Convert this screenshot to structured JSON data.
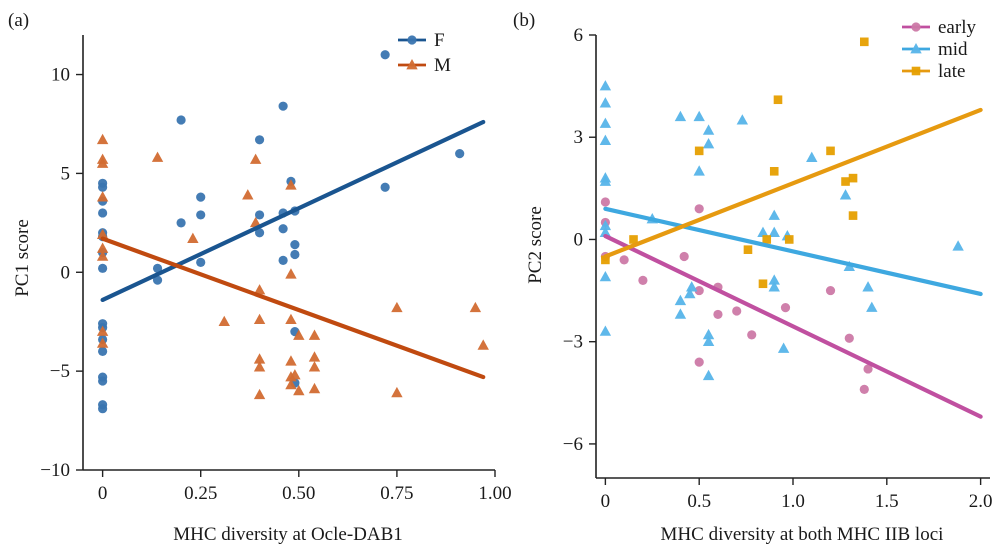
{
  "chart_data": [
    {
      "panel_label": "(a)",
      "type": "scatter",
      "xlabel": "MHC diversity at Ocle-DAB1",
      "ylabel": "PC1 score",
      "xlim": [
        -0.05,
        1.0
      ],
      "ylim": [
        -10,
        12
      ],
      "xticks": [
        0,
        0.25,
        0.5,
        0.75,
        1.0
      ],
      "xtick_labels": [
        "0",
        "0.25",
        "0.50",
        "0.75",
        "1.00"
      ],
      "yticks": [
        -10,
        -5,
        0,
        5,
        10
      ],
      "ytick_labels": [
        "−10",
        "−5",
        "0",
        "5",
        "10"
      ],
      "legend_position": "top-right",
      "series": [
        {
          "name": "F",
          "color": "#3a75b0",
          "fit_color": "#1a5590",
          "marker": "circle",
          "points": [
            [
              0,
              4.5
            ],
            [
              0,
              4.3
            ],
            [
              0,
              3.6
            ],
            [
              0,
              3.0
            ],
            [
              0,
              2.0
            ],
            [
              0,
              1.8
            ],
            [
              0,
              1.0
            ],
            [
              0,
              0.2
            ],
            [
              0,
              -2.6
            ],
            [
              0,
              -2.8
            ],
            [
              0,
              -3.4
            ],
            [
              0,
              -4.0
            ],
            [
              0,
              -5.3
            ],
            [
              0,
              -5.5
            ],
            [
              0,
              -6.7
            ],
            [
              0,
              -6.9
            ],
            [
              0.14,
              0.2
            ],
            [
              0.14,
              -0.4
            ],
            [
              0.2,
              7.7
            ],
            [
              0.2,
              2.5
            ],
            [
              0.25,
              3.8
            ],
            [
              0.25,
              2.9
            ],
            [
              0.25,
              0.5
            ],
            [
              0.4,
              6.7
            ],
            [
              0.4,
              2.9
            ],
            [
              0.4,
              2.0
            ],
            [
              0.46,
              8.4
            ],
            [
              0.46,
              3.0
            ],
            [
              0.46,
              2.2
            ],
            [
              0.46,
              0.6
            ],
            [
              0.48,
              4.6
            ],
            [
              0.49,
              3.1
            ],
            [
              0.49,
              1.4
            ],
            [
              0.49,
              0.9
            ],
            [
              0.49,
              -3.0
            ],
            [
              0.49,
              -5.6
            ],
            [
              0.72,
              11.0
            ],
            [
              0.72,
              4.3
            ],
            [
              0.91,
              6.0
            ]
          ],
          "fit": [
            [
              0,
              -1.4
            ],
            [
              0.97,
              7.6
            ]
          ]
        },
        {
          "name": "M",
          "color": "#d26b32",
          "fit_color": "#c04a10",
          "marker": "triangle",
          "points": [
            [
              0,
              6.7
            ],
            [
              0,
              5.7
            ],
            [
              0,
              5.5
            ],
            [
              0,
              3.8
            ],
            [
              0,
              1.9
            ],
            [
              0,
              1.2
            ],
            [
              0,
              0.8
            ],
            [
              0,
              -3.0
            ],
            [
              0,
              -3.6
            ],
            [
              0.14,
              5.8
            ],
            [
              0.23,
              1.7
            ],
            [
              0.31,
              -2.5
            ],
            [
              0.37,
              3.9
            ],
            [
              0.39,
              2.5
            ],
            [
              0.39,
              5.7
            ],
            [
              0.4,
              -0.9
            ],
            [
              0.4,
              -2.4
            ],
            [
              0.4,
              -4.4
            ],
            [
              0.4,
              -4.8
            ],
            [
              0.4,
              -6.2
            ],
            [
              0.48,
              4.4
            ],
            [
              0.48,
              -0.1
            ],
            [
              0.48,
              -2.4
            ],
            [
              0.48,
              -4.5
            ],
            [
              0.48,
              -5.3
            ],
            [
              0.48,
              -5.7
            ],
            [
              0.49,
              -5.2
            ],
            [
              0.5,
              -3.2
            ],
            [
              0.5,
              -6.0
            ],
            [
              0.54,
              -3.2
            ],
            [
              0.54,
              -4.3
            ],
            [
              0.54,
              -4.8
            ],
            [
              0.54,
              -5.9
            ],
            [
              0.75,
              -1.8
            ],
            [
              0.75,
              -6.1
            ],
            [
              0.95,
              -1.8
            ],
            [
              0.97,
              -3.7
            ]
          ],
          "fit": [
            [
              0,
              1.7
            ],
            [
              0.97,
              -5.3
            ]
          ]
        }
      ]
    },
    {
      "panel_label": "(b)",
      "type": "scatter",
      "xlabel": "MHC diversity at both MHC IIB loci",
      "ylabel": "PC2 score",
      "xlim": [
        -0.05,
        2.05
      ],
      "ylim": [
        -7,
        6
      ],
      "xticks": [
        0,
        0.5,
        1.0,
        1.5,
        2.0
      ],
      "xtick_labels": [
        "0",
        "0.5",
        "1.0",
        "1.5",
        "2.0"
      ],
      "yticks": [
        -6,
        -3,
        0,
        3,
        6
      ],
      "ytick_labels": [
        "−6",
        "−3",
        "0",
        "3",
        "6"
      ],
      "legend_position": "top-right",
      "series": [
        {
          "name": "early",
          "color": "#cc79a7",
          "fit_color": "#c050a0",
          "marker": "circle",
          "points": [
            [
              0,
              1.1
            ],
            [
              0,
              0.5
            ],
            [
              0,
              -0.5
            ],
            [
              0.1,
              -0.6
            ],
            [
              0.2,
              -1.2
            ],
            [
              0.42,
              -0.5
            ],
            [
              0.5,
              0.9
            ],
            [
              0.5,
              -1.5
            ],
            [
              0.5,
              -3.6
            ],
            [
              0.6,
              -1.4
            ],
            [
              0.6,
              -2.2
            ],
            [
              0.7,
              -2.1
            ],
            [
              0.78,
              -2.8
            ],
            [
              0.96,
              -2.0
            ],
            [
              1.2,
              -1.5
            ],
            [
              1.3,
              -2.9
            ],
            [
              1.38,
              -4.4
            ],
            [
              1.4,
              -3.8
            ]
          ],
          "fit": [
            [
              0,
              0.1
            ],
            [
              2.0,
              -5.2
            ]
          ]
        },
        {
          "name": "mid",
          "color": "#56b4e9",
          "fit_color": "#3ea8e0",
          "marker": "triangle",
          "points": [
            [
              0,
              4.5
            ],
            [
              0,
              4.0
            ],
            [
              0,
              3.4
            ],
            [
              0,
              2.9
            ],
            [
              0,
              1.8
            ],
            [
              0,
              1.7
            ],
            [
              0,
              0.4
            ],
            [
              0,
              0.2
            ],
            [
              0,
              -1.1
            ],
            [
              0,
              -2.7
            ],
            [
              0.25,
              0.6
            ],
            [
              0.4,
              3.6
            ],
            [
              0.4,
              -1.8
            ],
            [
              0.46,
              -1.4
            ],
            [
              0.5,
              3.6
            ],
            [
              0.5,
              2.0
            ],
            [
              0.55,
              3.2
            ],
            [
              0.55,
              2.8
            ],
            [
              0.55,
              -2.8
            ],
            [
              0.55,
              -3.0
            ],
            [
              0.55,
              -4.0
            ],
            [
              0.73,
              3.5
            ],
            [
              0.9,
              0.7
            ],
            [
              0.9,
              0.2
            ],
            [
              0.9,
              -1.2
            ],
            [
              0.9,
              -1.4
            ],
            [
              0.95,
              -3.2
            ],
            [
              0.97,
              0.1
            ],
            [
              1.1,
              2.4
            ],
            [
              1.28,
              1.3
            ],
            [
              1.3,
              -0.8
            ],
            [
              1.4,
              -1.4
            ],
            [
              1.42,
              -2.0
            ],
            [
              1.88,
              -0.2
            ],
            [
              0.84,
              0.2
            ],
            [
              0.45,
              -1.6
            ],
            [
              0.4,
              -2.2
            ]
          ],
          "fit": [
            [
              0,
              0.9
            ],
            [
              2.0,
              -1.6
            ]
          ]
        },
        {
          "name": "late",
          "color": "#e69f00",
          "fit_color": "#e69a10",
          "marker": "square",
          "points": [
            [
              0,
              -0.6
            ],
            [
              0.15,
              0
            ],
            [
              0.5,
              2.6
            ],
            [
              0.76,
              -0.3
            ],
            [
              0.84,
              -1.3
            ],
            [
              0.86,
              0
            ],
            [
              0.9,
              2.0
            ],
            [
              0.92,
              4.1
            ],
            [
              0.98,
              0
            ],
            [
              1.2,
              2.6
            ],
            [
              1.28,
              1.7
            ],
            [
              1.32,
              1.8
            ],
            [
              1.32,
              0.7
            ],
            [
              1.38,
              5.8
            ]
          ],
          "fit": [
            [
              0,
              -0.5
            ],
            [
              2.0,
              3.8
            ]
          ]
        }
      ]
    }
  ]
}
